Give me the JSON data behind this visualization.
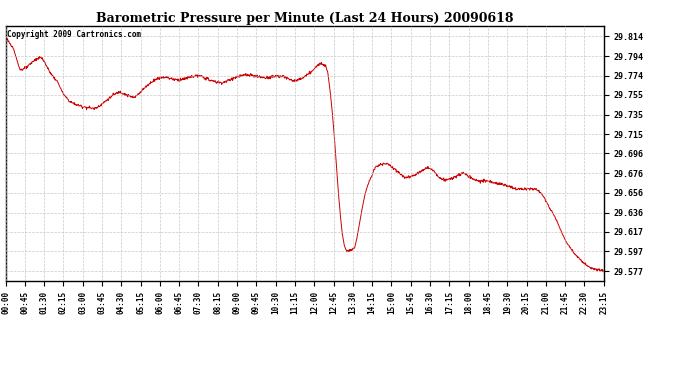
{
  "title": "Barometric Pressure per Minute (Last 24 Hours) 20090618",
  "copyright": "Copyright 2009 Cartronics.com",
  "line_color": "#cc0000",
  "background_color": "#ffffff",
  "grid_color": "#bbbbbb",
  "yticks": [
    29.577,
    29.597,
    29.617,
    29.636,
    29.656,
    29.676,
    29.696,
    29.715,
    29.735,
    29.755,
    29.774,
    29.794,
    29.814
  ],
  "xtick_labels": [
    "00:00",
    "00:45",
    "01:30",
    "02:15",
    "03:00",
    "03:45",
    "04:30",
    "05:15",
    "06:00",
    "06:45",
    "07:30",
    "08:15",
    "09:00",
    "09:45",
    "10:30",
    "11:15",
    "12:00",
    "12:45",
    "13:30",
    "14:15",
    "15:00",
    "15:45",
    "16:30",
    "17:15",
    "18:00",
    "18:45",
    "19:30",
    "20:15",
    "21:00",
    "21:45",
    "22:30",
    "23:15"
  ],
  "ylim": [
    29.567,
    29.824
  ],
  "num_points": 1440,
  "key_points": {
    "0": 29.814,
    "20": 29.8,
    "35": 29.78,
    "50": 29.782,
    "70": 29.79,
    "85": 29.793,
    "95": 29.787,
    "105": 29.779,
    "115": 29.773,
    "125": 29.768,
    "140": 29.755,
    "155": 29.748,
    "170": 29.745,
    "185": 29.743,
    "200": 29.742,
    "215": 29.741,
    "230": 29.745,
    "245": 29.75,
    "260": 29.755,
    "275": 29.758,
    "285": 29.756,
    "295": 29.754,
    "310": 29.752,
    "325": 29.758,
    "340": 29.764,
    "355": 29.769,
    "370": 29.772,
    "385": 29.773,
    "400": 29.771,
    "415": 29.77,
    "430": 29.771,
    "445": 29.773,
    "460": 29.774,
    "475": 29.773,
    "490": 29.77,
    "505": 29.768,
    "520": 29.767,
    "535": 29.769,
    "550": 29.772,
    "565": 29.774,
    "580": 29.775,
    "595": 29.774,
    "610": 29.773,
    "625": 29.772,
    "640": 29.773,
    "655": 29.774,
    "670": 29.773,
    "685": 29.77,
    "700": 29.769,
    "715": 29.772,
    "730": 29.776,
    "745": 29.782,
    "755": 29.786,
    "763": 29.787,
    "770": 29.784,
    "775": 29.778,
    "780": 29.762,
    "785": 29.742,
    "790": 29.718,
    "795": 29.69,
    "800": 29.66,
    "805": 29.635,
    "810": 29.615,
    "815": 29.603,
    "820": 29.598,
    "825": 29.598,
    "830": 29.598,
    "835": 29.599,
    "840": 29.601,
    "845": 29.61,
    "850": 29.622,
    "855": 29.634,
    "860": 29.645,
    "865": 29.655,
    "870": 29.662,
    "875": 29.668,
    "880": 29.672,
    "885": 29.678,
    "890": 29.682,
    "900": 29.684,
    "910": 29.686,
    "920": 29.685,
    "930": 29.682,
    "940": 29.679,
    "950": 29.675,
    "960": 29.672,
    "970": 29.672,
    "980": 29.673,
    "990": 29.676,
    "1000": 29.678,
    "1010": 29.681,
    "1020": 29.681,
    "1030": 29.678,
    "1040": 29.673,
    "1050": 29.67,
    "1060": 29.669,
    "1070": 29.67,
    "1080": 29.672,
    "1090": 29.674,
    "1100": 29.676,
    "1110": 29.674,
    "1120": 29.671,
    "1130": 29.669,
    "1140": 29.668,
    "1150": 29.668,
    "1160": 29.668,
    "1170": 29.667,
    "1180": 29.666,
    "1190": 29.665,
    "1200": 29.664,
    "1210": 29.663,
    "1220": 29.661,
    "1230": 29.66,
    "1240": 29.66,
    "1250": 29.66,
    "1260": 29.66,
    "1270": 29.66,
    "1280": 29.659,
    "1290": 29.655,
    "1300": 29.648,
    "1310": 29.64,
    "1320": 29.633,
    "1330": 29.624,
    "1340": 29.614,
    "1350": 29.606,
    "1360": 29.6,
    "1370": 29.594,
    "1380": 29.59,
    "1390": 29.586,
    "1400": 29.582,
    "1410": 29.58,
    "1420": 29.579,
    "1430": 29.578,
    "1439": 29.577
  }
}
